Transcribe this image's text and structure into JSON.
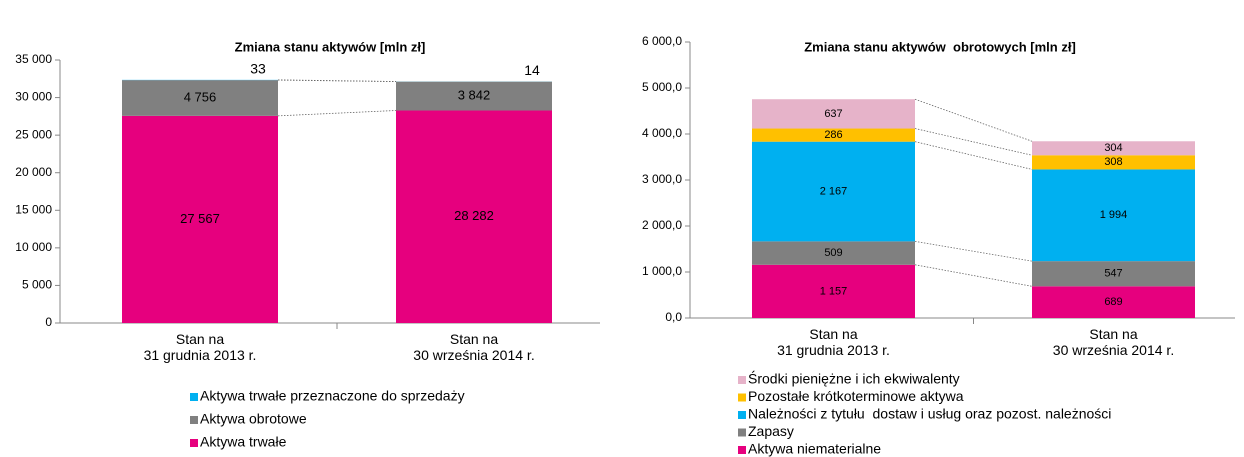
{
  "chart_data": [
    {
      "type": "bar",
      "stacked": true,
      "title": "Zmiana stanu aktywów [mln zł]",
      "categories": [
        "Stan na\n31 grudnia 2013 r.",
        "Stan na\n30 września 2014 r."
      ],
      "ylim": [
        0,
        35000
      ],
      "yticks": [
        0,
        {
          "value": 5000,
          "label": "5 000"
        },
        {
          "value": 10000,
          "label": "10 000"
        },
        {
          "value": 15000,
          "label": "15 000"
        },
        {
          "value": 20000,
          "label": "20 000"
        },
        {
          "value": 25000,
          "label": "25 000"
        },
        {
          "value": 30000,
          "label": "30 000"
        },
        {
          "value": 35000,
          "label": "35 000"
        }
      ],
      "series": [
        {
          "name": "Aktywa trwałe",
          "color": "#e6007e",
          "values": [
            27567,
            28282
          ],
          "value_labels": [
            "27 567",
            "28 282"
          ]
        },
        {
          "name": "Aktywa obrotowe",
          "color": "#808080",
          "values": [
            4756,
            3842
          ],
          "value_labels": [
            "4 756",
            "3 842"
          ]
        },
        {
          "name": "Aktywa trwałe przeznaczone do sprzedaży",
          "color": "#00b0f0",
          "values": [
            33,
            14
          ]
        }
      ]
    },
    {
      "type": "bar",
      "stacked": true,
      "title": "Zmiana stanu aktywów  obrotowych [mln zł]",
      "categories": [
        "Stan na\n31 grudnia 2013 r.",
        "Stan na\n30 września 2014 r."
      ],
      "ylim": [
        0,
        6000
      ],
      "yticks": [
        {
          "value": 0,
          "label": "0,0"
        },
        {
          "value": 1000,
          "label": "1 000,0"
        },
        {
          "value": 2000,
          "label": "2 000,0"
        },
        {
          "value": 3000,
          "label": "3 000,0"
        },
        {
          "value": 4000,
          "label": "4 000,0"
        },
        {
          "value": 5000,
          "label": "5 000,0"
        },
        {
          "value": 6000,
          "label": "6 000,0"
        }
      ],
      "series": [
        {
          "name": "Aktywa niematerialne",
          "color": "#e6007e",
          "values": [
            1157,
            689
          ],
          "value_labels": [
            "1 157",
            "689"
          ]
        },
        {
          "name": "Zapasy",
          "color": "#808080",
          "values": [
            509,
            547
          ]
        },
        {
          "name": "Należności z tytułu  dostaw i usług oraz pozost. należności",
          "color": "#00b0f0",
          "values": [
            2167,
            1994
          ],
          "value_labels": [
            "2 167",
            "1 994"
          ]
        },
        {
          "name": "Pozostałe krótkoterminowe aktywa",
          "color": "#ffc000",
          "values": [
            286,
            308
          ]
        },
        {
          "name": "Środki pieniężne i ich ekwiwalenty",
          "color": "#e6b3c9",
          "values": [
            637,
            304
          ]
        }
      ]
    }
  ]
}
